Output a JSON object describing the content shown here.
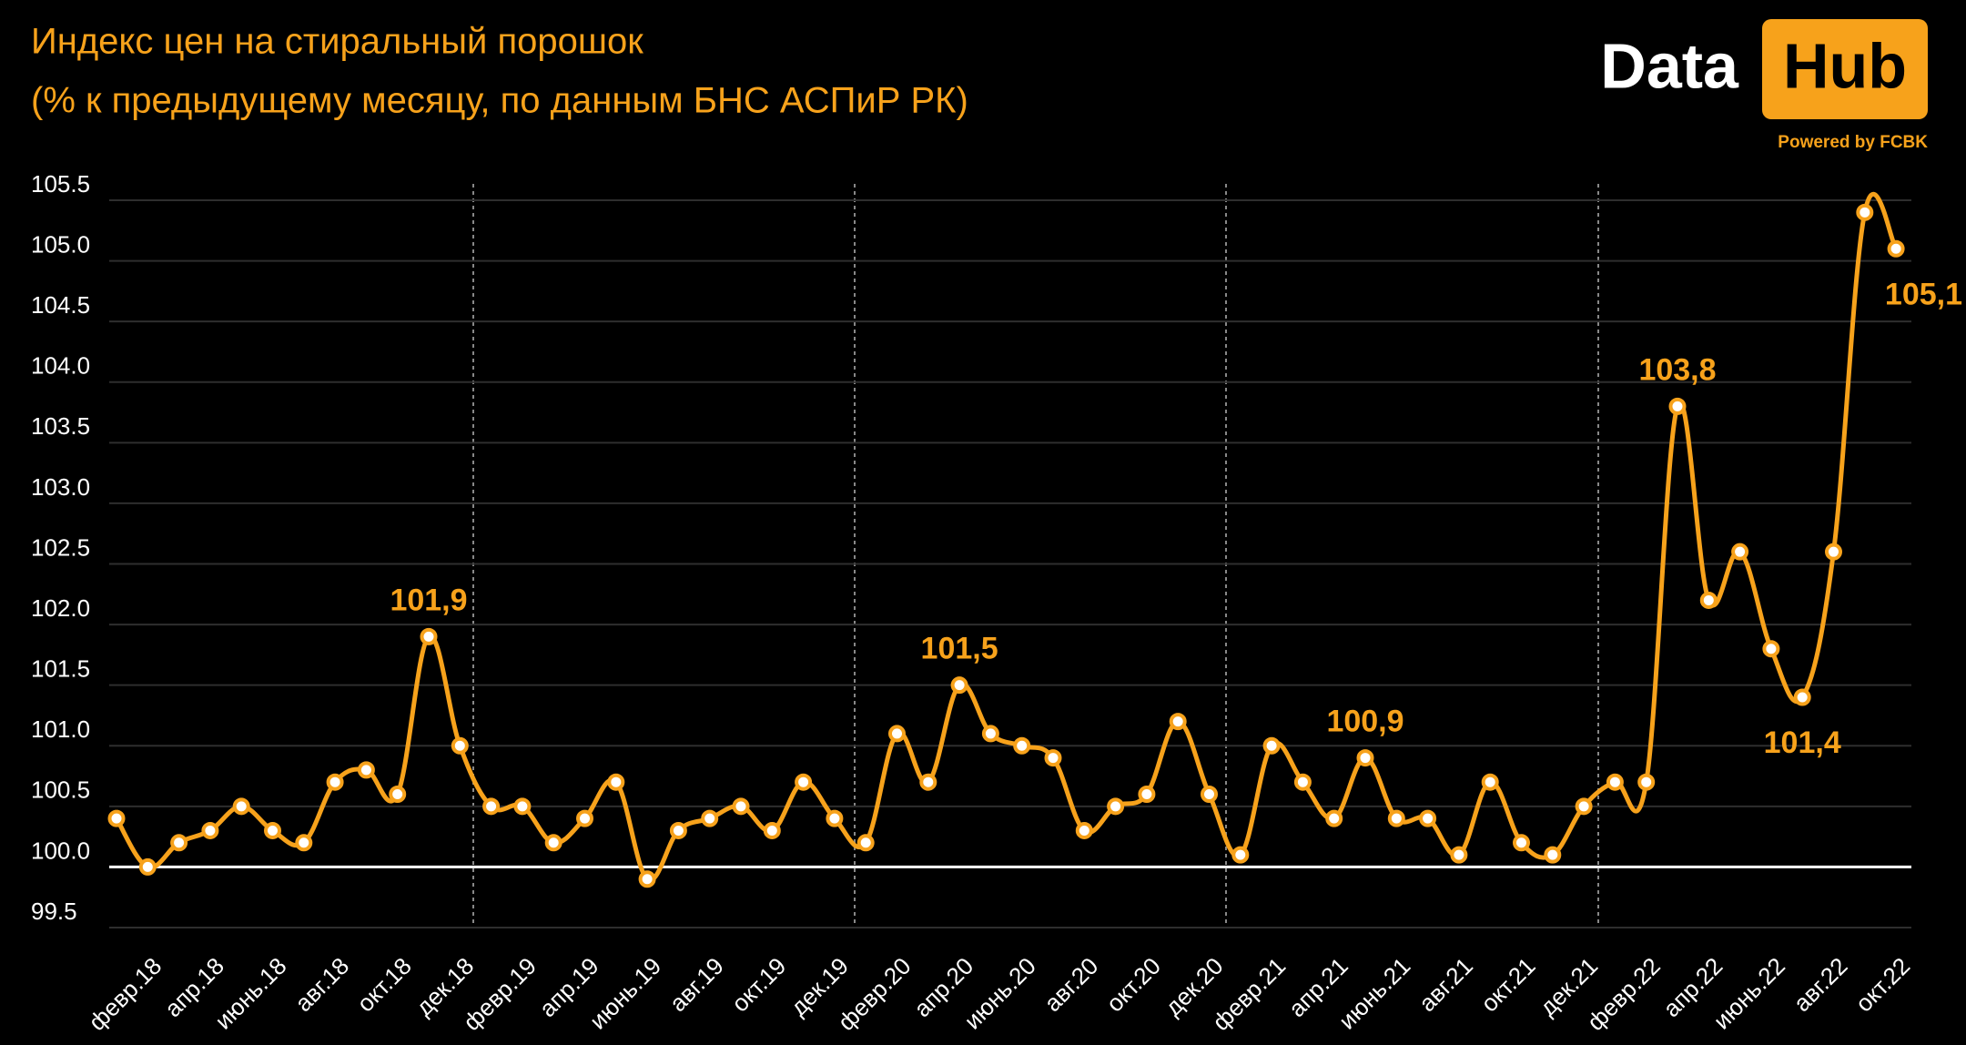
{
  "chart_data": {
    "type": "line",
    "title": "Индекс цен на стиральный порошок",
    "subtitle": "(% к предыдущему месяцу, по данным БНС АСПиР РК)",
    "logo": {
      "left": "Data",
      "right": "Hub",
      "tagline": "Powered by FCBK"
    },
    "categories": [
      null,
      "февр.18",
      null,
      "апр.18",
      null,
      "июнь.18",
      null,
      "авг.18",
      null,
      "окт.18",
      null,
      "дек.18",
      null,
      "февр.19",
      null,
      "апр.19",
      null,
      "июнь.19",
      null,
      "авг.19",
      null,
      "окт.19",
      null,
      "дек.19",
      null,
      "февр.20",
      null,
      "апр.20",
      null,
      "июнь.20",
      null,
      "авг.20",
      null,
      "окт.20",
      null,
      "дек.20",
      null,
      "февр.21",
      null,
      "апр.21",
      null,
      "июнь.21",
      null,
      "авг.21",
      null,
      "окт.21",
      null,
      "дек.21",
      null,
      "февр.22",
      null,
      "апр.22",
      null,
      "июнь.22",
      null,
      "авг.22",
      null,
      "окт.22"
    ],
    "values": [
      100.4,
      100.0,
      100.2,
      100.3,
      100.5,
      100.3,
      100.2,
      100.7,
      100.8,
      100.6,
      101.9,
      101.0,
      100.5,
      100.5,
      100.2,
      100.4,
      100.7,
      99.9,
      100.3,
      100.4,
      100.5,
      100.3,
      100.7,
      100.4,
      100.2,
      101.1,
      100.7,
      101.5,
      101.1,
      101.0,
      100.9,
      100.3,
      100.5,
      100.6,
      101.2,
      100.6,
      100.1,
      101.0,
      100.7,
      100.4,
      100.9,
      100.4,
      100.4,
      100.1,
      100.7,
      100.2,
      100.1,
      100.5,
      100.7,
      100.7,
      103.8,
      102.2,
      102.6,
      101.8,
      101.4,
      102.6,
      105.4,
      105.1
    ],
    "value_labels": [
      null,
      null,
      null,
      null,
      null,
      null,
      null,
      null,
      null,
      null,
      "101,9",
      null,
      null,
      null,
      null,
      null,
      null,
      null,
      null,
      null,
      null,
      null,
      null,
      null,
      null,
      null,
      null,
      "101,5",
      null,
      null,
      null,
      null,
      null,
      null,
      null,
      null,
      null,
      null,
      null,
      null,
      "100,9",
      null,
      null,
      null,
      null,
      null,
      null,
      null,
      null,
      null,
      "103,8",
      null,
      null,
      null,
      "101,4",
      null,
      null,
      "105,1"
    ],
    "color": "#f7a21b",
    "ylim": [
      99.5,
      105.5
    ],
    "yticks": [
      99.5,
      {
        "value": 100,
        "label": "100.0"
      },
      100.5,
      {
        "value": 101,
        "label": "101.0"
      },
      101.5,
      {
        "value": 102,
        "label": "102.0"
      },
      102.5,
      {
        "value": 103,
        "label": "103.0"
      },
      103.5,
      {
        "value": 104,
        "label": "104.0"
      },
      104.5,
      {
        "value": 105,
        "label": "105.0"
      },
      105.5
    ],
    "baseline": 100,
    "grid": true
  }
}
